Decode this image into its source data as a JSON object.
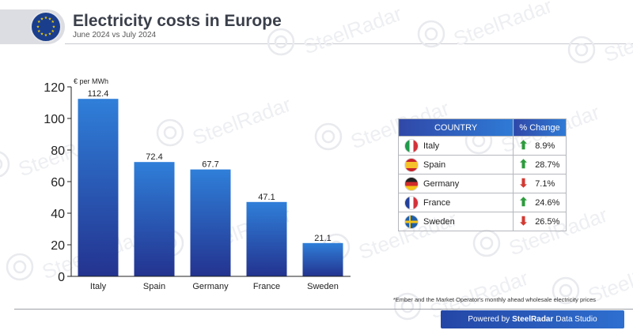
{
  "header": {
    "title": "Electricity costs in Europe",
    "subtitle": "June 2024 vs July 2024"
  },
  "watermark": {
    "text": "SteelRadar"
  },
  "chart_data": {
    "type": "bar",
    "ylabel": "€ per MWh",
    "categories": [
      "Italy",
      "Spain",
      "Germany",
      "France",
      "Sweden"
    ],
    "values": [
      112.4,
      72.4,
      67.7,
      47.1,
      21.1
    ],
    "value_labels": [
      "112.4",
      "72.4",
      "67.7",
      "47.1",
      "21.1"
    ],
    "ylim": [
      0,
      120
    ],
    "yticks": [
      0,
      20,
      40,
      60,
      80,
      100,
      120
    ],
    "grid": false,
    "bar_color_top": "#2f7fd9",
    "bar_color_bottom": "#23338f"
  },
  "table": {
    "headers": [
      "COUNTRY",
      "% Change"
    ],
    "rows": [
      {
        "country": "Italy",
        "change": "8.9%",
        "direction": "up",
        "flag": "italy-flag-icon"
      },
      {
        "country": "Spain",
        "change": "28.7%",
        "direction": "up",
        "flag": "spain-flag-icon"
      },
      {
        "country": "Germany",
        "change": "7.1%",
        "direction": "down",
        "flag": "germany-flag-icon"
      },
      {
        "country": "France",
        "change": "24.6%",
        "direction": "up",
        "flag": "france-flag-icon"
      },
      {
        "country": "Sweden",
        "change": "26.5%",
        "direction": "down",
        "flag": "sweden-flag-icon"
      }
    ]
  },
  "footnote": "*Ember and the Market Operator's monthly ahead wholesale electricity prices",
  "footer": {
    "prefix": "Powered by",
    "brand": "SteelRadar",
    "suffix": "Data Studio"
  },
  "colors": {
    "up": "#2e9b3d",
    "down": "#d23a32",
    "header_start": "#3048a8",
    "header_end": "#2f7bd6"
  }
}
